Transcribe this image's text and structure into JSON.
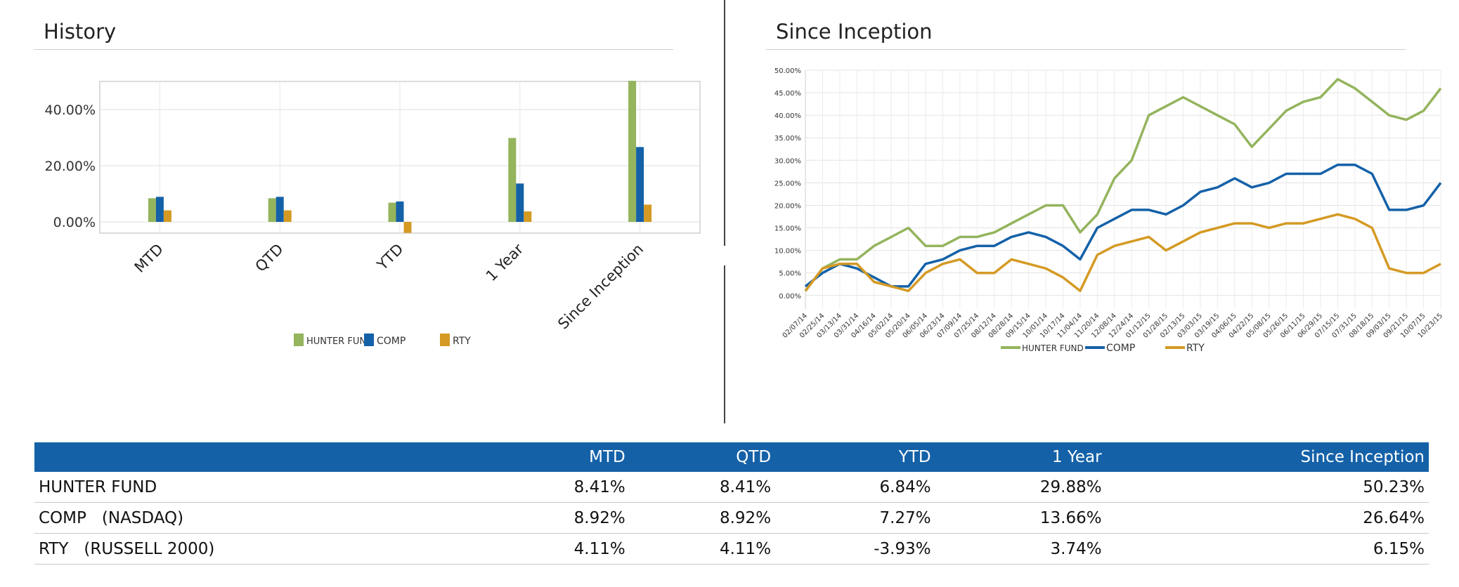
{
  "panels": {
    "left_title": "History",
    "right_title": "Since Inception"
  },
  "colors": {
    "hunter": "#94b45d",
    "comp": "#1461a8",
    "rty": "#d59a24",
    "header_bg": "#1461a8"
  },
  "chart_data": [
    {
      "type": "bar",
      "title": "History",
      "categories": [
        "MTD",
        "QTD",
        "YTD",
        "1 Year",
        "Since Inception"
      ],
      "series": [
        {
          "name": "HUNTER FUND",
          "values": [
            8.41,
            8.41,
            6.84,
            29.88,
            50.23
          ]
        },
        {
          "name": "COMP",
          "values": [
            8.92,
            8.92,
            7.27,
            13.66,
            26.64
          ]
        },
        {
          "name": "RTY",
          "values": [
            4.11,
            4.11,
            -3.93,
            3.74,
            6.15
          ]
        }
      ],
      "yticks": [
        "0.00%",
        "20.00%",
        "40.00%"
      ],
      "ylim": [
        -4,
        50
      ],
      "grid": true,
      "legend": "bottom"
    },
    {
      "type": "line",
      "title": "Since Inception",
      "x": [
        "02/07/14",
        "02/25/14",
        "03/13/14",
        "03/31/14",
        "04/16/14",
        "05/02/14",
        "05/20/14",
        "06/05/14",
        "06/23/14",
        "07/09/14",
        "07/25/14",
        "08/12/14",
        "08/28/14",
        "09/15/14",
        "10/01/14",
        "10/17/14",
        "11/04/14",
        "11/20/14",
        "12/08/14",
        "12/24/14",
        "01/12/15",
        "01/28/15",
        "02/13/15",
        "03/03/15",
        "03/19/15",
        "04/06/15",
        "04/22/15",
        "05/08/15",
        "05/26/15",
        "06/11/15",
        "06/29/15",
        "07/15/15",
        "07/31/15",
        "08/18/15",
        "09/03/15",
        "09/21/15",
        "10/07/15",
        "10/23/15"
      ],
      "series": [
        {
          "name": "HUNTER FUND",
          "values": [
            1,
            6,
            8,
            8,
            11,
            13,
            15,
            11,
            11,
            13,
            13,
            14,
            16,
            18,
            20,
            20,
            14,
            18,
            26,
            30,
            40,
            42,
            44,
            42,
            40,
            38,
            33,
            37,
            41,
            43,
            44,
            48,
            46,
            43,
            40,
            39,
            41,
            46
          ]
        },
        {
          "name": "COMP",
          "values": [
            2,
            5,
            7,
            6,
            4,
            2,
            2,
            7,
            8,
            10,
            11,
            11,
            13,
            14,
            13,
            11,
            8,
            15,
            17,
            19,
            19,
            18,
            20,
            23,
            24,
            26,
            24,
            25,
            27,
            27,
            27,
            29,
            29,
            27,
            19,
            19,
            20,
            25
          ]
        },
        {
          "name": "RTY",
          "values": [
            1,
            6,
            7,
            7,
            3,
            2,
            1,
            5,
            7,
            8,
            5,
            5,
            8,
            7,
            6,
            4,
            1,
            9,
            11,
            12,
            13,
            10,
            12,
            14,
            15,
            16,
            16,
            15,
            16,
            16,
            17,
            18,
            17,
            15,
            6,
            5,
            5,
            7
          ]
        }
      ],
      "yticks": [
        "0.00%",
        "5.00%",
        "10.00%",
        "15.00%",
        "20.00%",
        "25.00%",
        "30.00%",
        "35.00%",
        "40.00%",
        "45.00%",
        "50.00%"
      ],
      "ylim": [
        -3,
        50
      ],
      "grid": true,
      "legend": "bottom"
    }
  ],
  "table": {
    "headers": [
      "",
      "MTD",
      "QTD",
      "YTD",
      "1 Year",
      "Since Inception"
    ],
    "rows": [
      {
        "name": "HUNTER FUND",
        "sub": "",
        "values": [
          "8.41%",
          "8.41%",
          "6.84%",
          "29.88%",
          "50.23%"
        ]
      },
      {
        "name": "COMP",
        "sub": "(NASDAQ)",
        "values": [
          "8.92%",
          "8.92%",
          "7.27%",
          "13.66%",
          "26.64%"
        ]
      },
      {
        "name": "RTY",
        "sub": "(RUSSELL 2000)",
        "values": [
          "4.11%",
          "4.11%",
          "-3.93%",
          "3.74%",
          "6.15%"
        ]
      }
    ]
  }
}
